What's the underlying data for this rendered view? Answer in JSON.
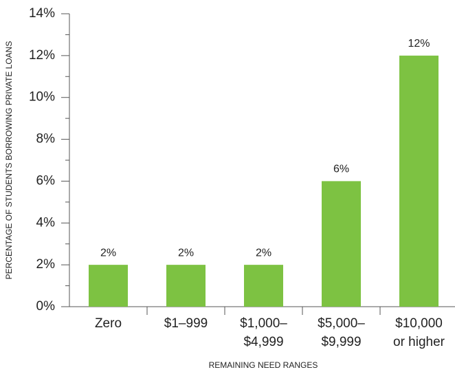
{
  "chart_data": {
    "type": "bar",
    "y_axis_label": "PERCENTAGE OF STUDENTS BORROWING PRIVATE LOANS",
    "x_axis_label": "REMAINING NEED RANGES",
    "categories": [
      "Zero",
      "$1–999",
      "$1,000–\n$4,999",
      "$5,000–\n$9,999",
      "$10,000\nor higher"
    ],
    "values": [
      2,
      2,
      2,
      6,
      12
    ],
    "value_labels": [
      "2%",
      "2%",
      "2%",
      "6%",
      "12%"
    ],
    "color": "#7dc242",
    "ylim": [
      0,
      14
    ],
    "yticks": [
      {
        "value": 0,
        "label": "0%"
      },
      {
        "value": 2,
        "label": "2%"
      },
      {
        "value": 4,
        "label": "4%"
      },
      {
        "value": 6,
        "label": "6%"
      },
      {
        "value": 8,
        "label": "8%"
      },
      {
        "value": 10,
        "label": "10%"
      },
      {
        "value": 12,
        "label": "12%"
      },
      {
        "value": 14,
        "label": "14%"
      }
    ]
  }
}
